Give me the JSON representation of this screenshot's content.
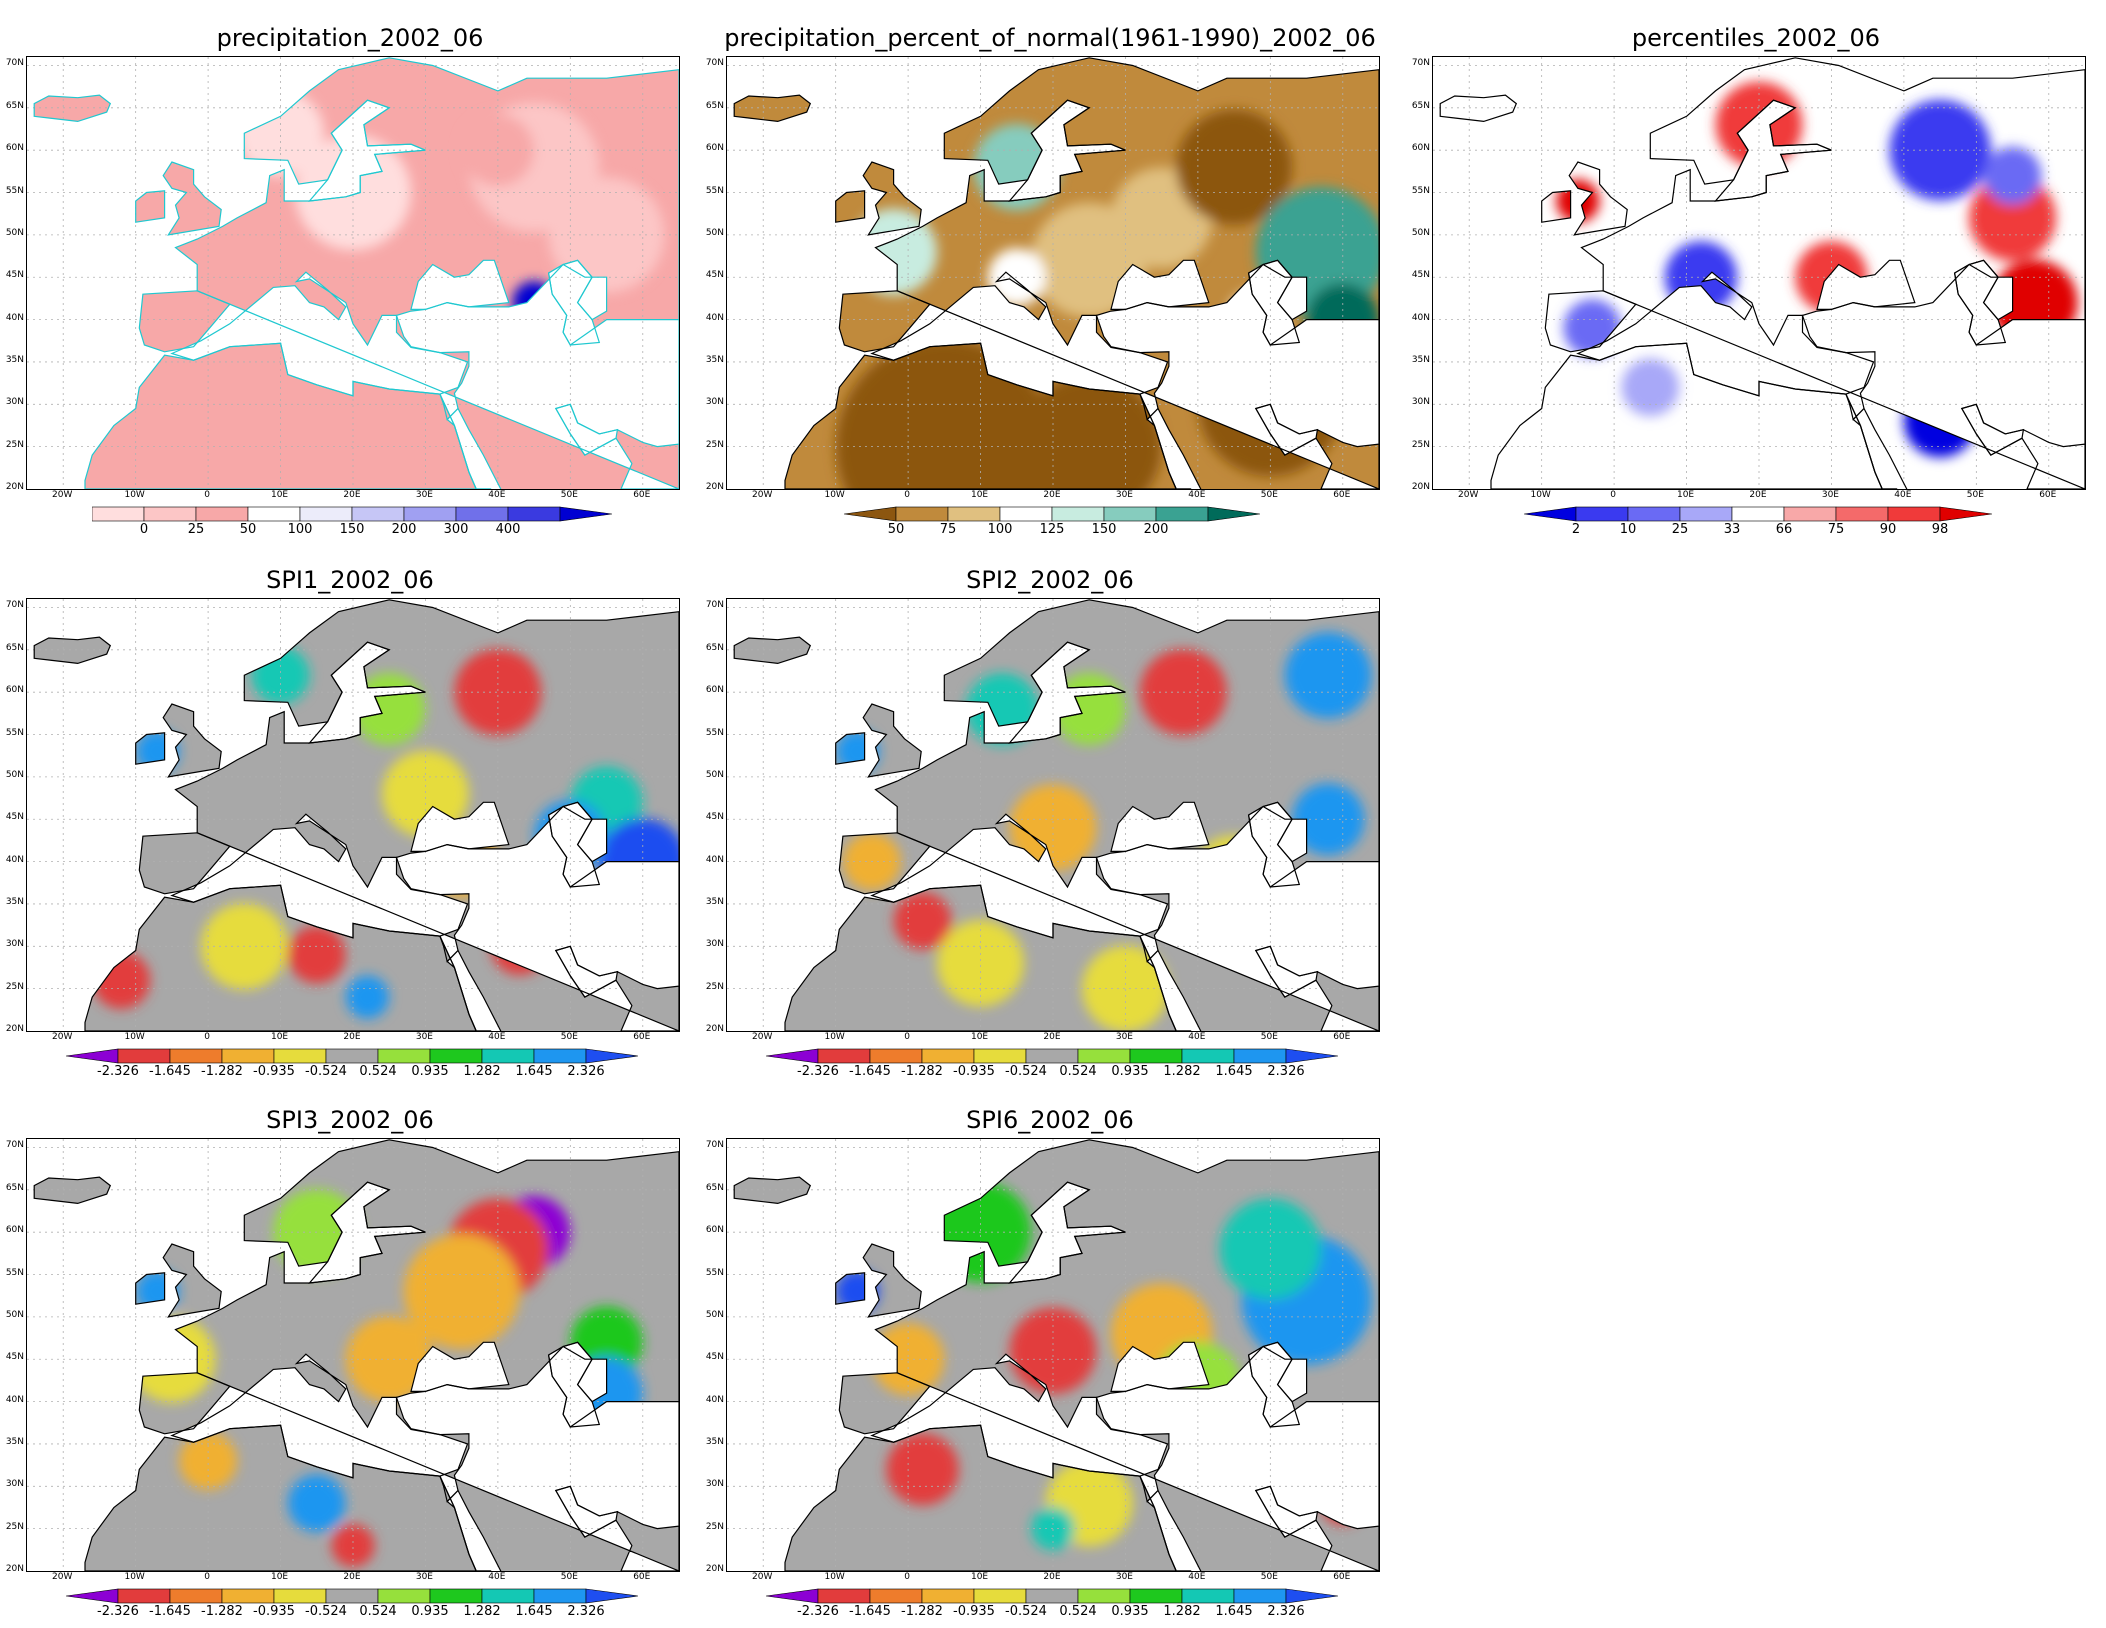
{
  "axes": {
    "lat_labels": [
      "70N",
      "65N",
      "60N",
      "55N",
      "50N",
      "45N",
      "40N",
      "35N",
      "30N",
      "25N",
      "20N"
    ],
    "lon_labels": [
      "20W",
      "10W",
      "0",
      "10E",
      "20E",
      "30E",
      "40E",
      "50E",
      "60E"
    ]
  },
  "panels": [
    {
      "id": "precip",
      "title": "precipitation_2002_06",
      "palette": "precip",
      "coast_color": "#20c8d0",
      "colorbar": {
        "colors": [
          "#ffdede",
          "#fcc6c6",
          "#f7a8a8",
          "#ffffff",
          "#ececfa",
          "#c6c6f6",
          "#a0a0f2",
          "#7070ea",
          "#3a3ae0",
          "#0000d2"
        ],
        "ticks": [
          "0",
          "25",
          "50",
          "100",
          "150",
          "200",
          "300",
          "400"
        ],
        "left_extend": false,
        "right_extend": true
      }
    },
    {
      "id": "pon",
      "title": "precipitation_percent_of_normal(1961-1990)_2002_06",
      "palette": "pon",
      "coast_color": "#000000",
      "colorbar": {
        "colors": [
          "#8c5610",
          "#c08a3c",
          "#e0c080",
          "#ffffff",
          "#c8ece0",
          "#86ccbe",
          "#3aa292",
          "#006b5a"
        ],
        "ticks": [
          "50",
          "75",
          "100",
          "125",
          "150",
          "200"
        ],
        "left_extend": true,
        "right_extend": true
      }
    },
    {
      "id": "pct",
      "title": "percentiles_2002_06",
      "palette": "pct",
      "coast_color": "#000000",
      "colorbar": {
        "colors": [
          "#0000e0",
          "#3a3af0",
          "#6a6af4",
          "#a8a8f8",
          "#ffffff",
          "#f8a8a8",
          "#f46a6a",
          "#f03a3a",
          "#e00000"
        ],
        "ticks": [
          "2",
          "10",
          "25",
          "33",
          "66",
          "75",
          "90",
          "98"
        ],
        "left_extend": true,
        "right_extend": true
      }
    },
    {
      "id": "spi1",
      "title": "SPI1_2002_06",
      "palette": "spi",
      "coast_color": "#000000",
      "colorbar": {
        "colors": [
          "#8c00d4",
          "#e23c3c",
          "#ee7c2c",
          "#f0b032",
          "#e6dc3c",
          "#a8a8a8",
          "#96e03c",
          "#1ec81e",
          "#14c8b4",
          "#1e96f0",
          "#1e4ef0"
        ],
        "ticks": [
          "-2.326",
          "-1.645",
          "-1.282",
          "-0.935",
          "-0.524",
          "0.524",
          "0.935",
          "1.282",
          "1.645",
          "2.326"
        ],
        "left_extend": true,
        "right_extend": true
      }
    },
    {
      "id": "spi2",
      "title": "SPI2_2002_06",
      "palette": "spi",
      "coast_color": "#000000",
      "colorbar": {
        "colors": [
          "#8c00d4",
          "#e23c3c",
          "#ee7c2c",
          "#f0b032",
          "#e6dc3c",
          "#a8a8a8",
          "#96e03c",
          "#1ec81e",
          "#14c8b4",
          "#1e96f0",
          "#1e4ef0"
        ],
        "ticks": [
          "-2.326",
          "-1.645",
          "-1.282",
          "-0.935",
          "-0.524",
          "0.524",
          "0.935",
          "1.282",
          "1.645",
          "2.326"
        ],
        "left_extend": true,
        "right_extend": true
      }
    },
    {
      "id": "spi3",
      "title": "SPI3_2002_06",
      "palette": "spi",
      "coast_color": "#000000",
      "colorbar": {
        "colors": [
          "#8c00d4",
          "#e23c3c",
          "#ee7c2c",
          "#f0b032",
          "#e6dc3c",
          "#a8a8a8",
          "#96e03c",
          "#1ec81e",
          "#14c8b4",
          "#1e96f0",
          "#1e4ef0"
        ],
        "ticks": [
          "-2.326",
          "-1.645",
          "-1.282",
          "-0.935",
          "-0.524",
          "0.524",
          "0.935",
          "1.282",
          "1.645",
          "2.326"
        ],
        "left_extend": true,
        "right_extend": true
      }
    },
    {
      "id": "spi6",
      "title": "SPI6_2002_06",
      "palette": "spi",
      "coast_color": "#000000",
      "colorbar": {
        "colors": [
          "#8c00d4",
          "#e23c3c",
          "#ee7c2c",
          "#f0b032",
          "#e6dc3c",
          "#a8a8a8",
          "#96e03c",
          "#1ec81e",
          "#14c8b4",
          "#1e96f0",
          "#1e4ef0"
        ],
        "ticks": [
          "-2.326",
          "-1.645",
          "-1.282",
          "-0.935",
          "-0.524",
          "0.524",
          "0.935",
          "1.282",
          "1.645",
          "2.326"
        ],
        "left_extend": true,
        "right_extend": true
      }
    }
  ]
}
